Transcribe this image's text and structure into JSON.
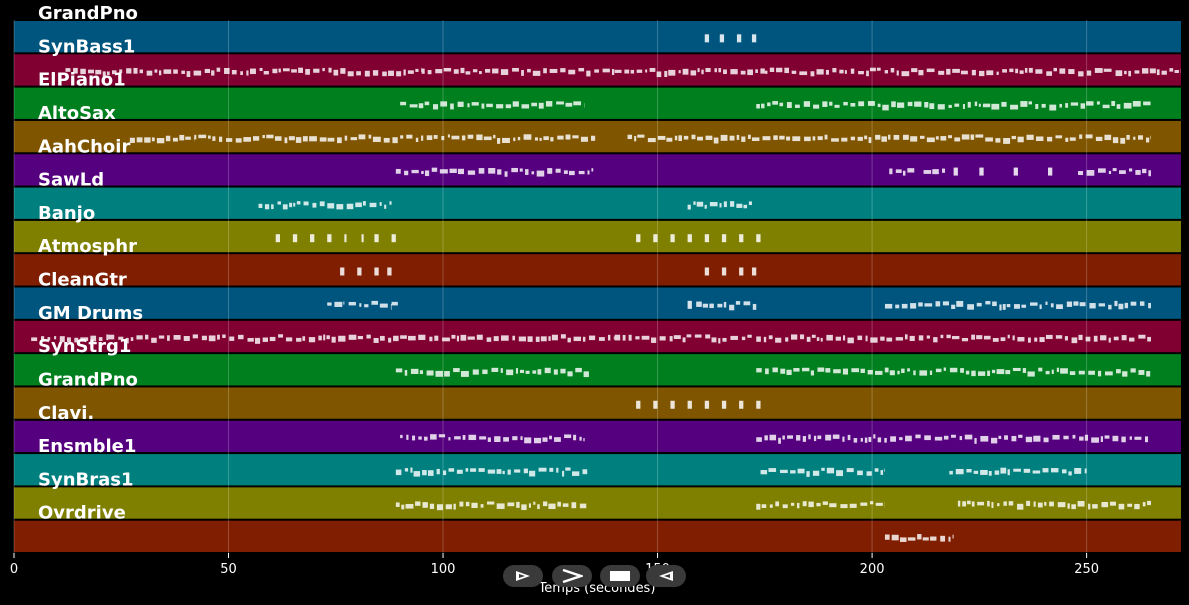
{
  "chart_data": {
    "type": "piano-roll",
    "xlabel": "Temps (secondes)",
    "xlim": [
      0,
      272
    ],
    "xticks": [
      0,
      50,
      100,
      150,
      200,
      250
    ],
    "grid": true,
    "tracks": [
      {
        "name": "GrandPno",
        "color": "#00557f",
        "segments": [
          [
            161,
            162
          ],
          [
            164.5,
            165.5
          ],
          [
            168.5,
            169.5
          ],
          [
            172,
            173
          ]
        ]
      },
      {
        "name": "SynBass1",
        "color": "#7f0031",
        "segments": [
          [
            12,
            95
          ],
          [
            95,
            140
          ],
          [
            140,
            175
          ],
          [
            175,
            272
          ]
        ]
      },
      {
        "name": "ElPiano1",
        "color": "#007f1e",
        "segments": [
          [
            90,
            133
          ],
          [
            173,
            265
          ]
        ]
      },
      {
        "name": "AltoSax",
        "color": "#7f5500",
        "segments": [
          [
            27,
            42
          ],
          [
            42,
            90
          ],
          [
            90,
            136
          ],
          [
            143,
            172
          ],
          [
            172,
            265
          ]
        ]
      },
      {
        "name": "AahChoir",
        "color": "#55007f",
        "segments": [
          [
            89,
            135
          ],
          [
            204,
            210
          ],
          [
            212,
            217
          ],
          [
            219,
            220
          ],
          [
            225,
            226
          ],
          [
            233,
            234
          ],
          [
            241,
            242
          ],
          [
            248,
            265
          ]
        ]
      },
      {
        "name": "SawLd",
        "color": "#007f7f",
        "segments": [
          [
            57,
            88
          ],
          [
            157,
            172
          ]
        ]
      },
      {
        "name": "Banjo",
        "color": "#7f7f00",
        "segments": [
          [
            61,
            62
          ],
          [
            65,
            66
          ],
          [
            69,
            70
          ],
          [
            73,
            74
          ],
          [
            77,
            77.5
          ],
          [
            81,
            81.5
          ],
          [
            84,
            85
          ],
          [
            88,
            89
          ],
          [
            145,
            146
          ],
          [
            149,
            150
          ],
          [
            153,
            154
          ],
          [
            157,
            158
          ],
          [
            161,
            162
          ],
          [
            165,
            166
          ],
          [
            169,
            170
          ],
          [
            173,
            174
          ]
        ]
      },
      {
        "name": "Atmosphr",
        "color": "#7f1e00",
        "segments": [
          [
            76,
            77
          ],
          [
            80,
            81
          ],
          [
            84,
            85
          ],
          [
            87,
            88
          ],
          [
            161,
            162
          ],
          [
            165,
            166
          ],
          [
            169,
            170
          ],
          [
            172,
            173
          ]
        ]
      },
      {
        "name": "CleanGtr",
        "color": "#00557f",
        "segments": [
          [
            73,
            77
          ],
          [
            78,
            88
          ],
          [
            88,
            90
          ],
          [
            157,
            158
          ],
          [
            159,
            173
          ],
          [
            203,
            265
          ]
        ]
      },
      {
        "name": "GM Drums",
        "color": "#7f0031",
        "segments": [
          [
            4,
            22
          ],
          [
            22,
            90
          ],
          [
            90,
            140
          ],
          [
            140,
            172
          ],
          [
            173,
            265
          ]
        ]
      },
      {
        "name": "SynStrg1",
        "color": "#007f1e",
        "segments": [
          [
            89,
            134
          ],
          [
            173,
            265
          ]
        ]
      },
      {
        "name": "GrandPno",
        "color": "#7f5500",
        "segments": [
          [
            145,
            146
          ],
          [
            149,
            150
          ],
          [
            153,
            154
          ],
          [
            157,
            158
          ],
          [
            161,
            162
          ],
          [
            165,
            166
          ],
          [
            169,
            170
          ],
          [
            173,
            174
          ]
        ]
      },
      {
        "name": "Clavi.",
        "color": "#55007f",
        "segments": [
          [
            90,
            133
          ],
          [
            173,
            265
          ]
        ]
      },
      {
        "name": "Ensmble1",
        "color": "#007f7f",
        "segments": [
          [
            89,
            134
          ],
          [
            174,
            203
          ],
          [
            218,
            250
          ]
        ]
      },
      {
        "name": "SynBras1",
        "color": "#7f7f00",
        "segments": [
          [
            89,
            134
          ],
          [
            173,
            203
          ],
          [
            220,
            265
          ]
        ]
      },
      {
        "name": "Ovrdrive",
        "color": "#7f1e00",
        "segments": [
          [
            203,
            219
          ]
        ]
      }
    ]
  },
  "controls": {
    "play_glyph": "play-outline-icon",
    "forward_glyph": "chevron-right-icon",
    "stop_glyph": "stop-icon",
    "back_glyph": "back-triangle-icon"
  }
}
